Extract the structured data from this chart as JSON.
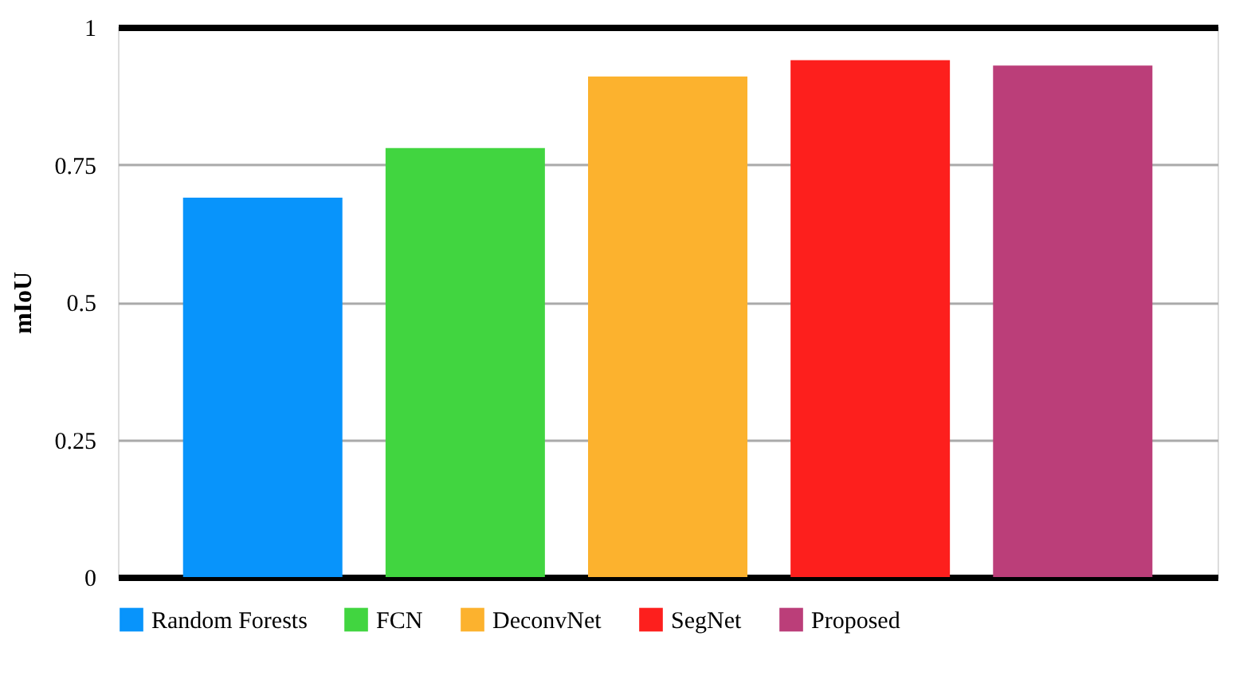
{
  "chart_data": {
    "type": "bar",
    "ylabel": "mIoU",
    "categories": [
      null,
      null,
      null,
      null,
      null
    ],
    "series": [
      {
        "name": "Random Forests",
        "color": "#0894fb",
        "values": [
          0.69,
          null,
          null,
          null,
          null
        ]
      },
      {
        "name": "FCN",
        "color": "#41d540",
        "values": [
          null,
          0.78,
          null,
          null,
          null
        ]
      },
      {
        "name": "DeconvNet",
        "color": "#fcb22e",
        "values": [
          null,
          null,
          0.91,
          null,
          null
        ]
      },
      {
        "name": "SegNet",
        "color": "#fd1f1d",
        "values": [
          null,
          null,
          null,
          0.94,
          null
        ]
      },
      {
        "name": "Proposed",
        "color": "#bb3e79",
        "values": [
          null,
          null,
          null,
          null,
          0.93
        ]
      }
    ],
    "ylim": [
      0,
      1
    ],
    "yticks": [
      0,
      0.25,
      0.5,
      0.75,
      1
    ],
    "grid": "y",
    "legend": "bottom",
    "tick_labels": "y"
  }
}
